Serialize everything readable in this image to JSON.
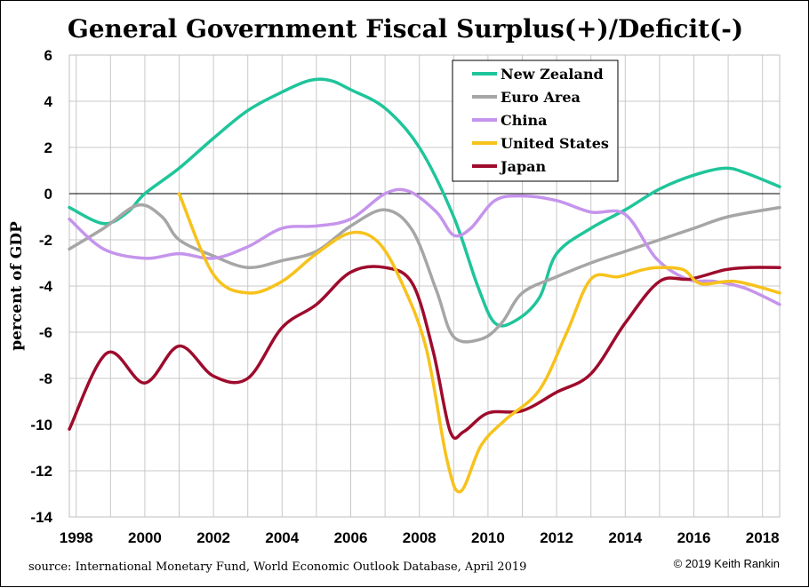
{
  "chart_data": {
    "type": "line",
    "title": "General Government Fiscal Surplus(+)/Deficit(-)",
    "ylabel": "percent of GDP",
    "xlabel": "",
    "xlim": [
      1997.8,
      2018.5
    ],
    "ylim": [
      -14,
      6
    ],
    "yticks": [
      6,
      4,
      2,
      0,
      -2,
      -4,
      -6,
      -8,
      -10,
      -12,
      -14
    ],
    "yticklabels": [
      "6",
      "4",
      "2",
      "0",
      "-2",
      "-4",
      "-6",
      "-8",
      "-10",
      "-12",
      "-14"
    ],
    "xticks": [
      1998,
      2000,
      2002,
      2004,
      2006,
      2008,
      2010,
      2012,
      2014,
      2016,
      2018
    ],
    "xticklabels": [
      "1998",
      "2000",
      "2002",
      "2004",
      "2006",
      "2008",
      "2010",
      "2012",
      "2014",
      "2016",
      "2018"
    ],
    "grid": true,
    "legend_position": "top-right",
    "zero_line": true,
    "series": [
      {
        "name": "New Zealand",
        "color": "#1fc59a",
        "x": [
          1997.8,
          1998.8,
          1999.5,
          2000.0,
          2001.0,
          2002.0,
          2003.0,
          2004.0,
          2004.8,
          2005.4,
          2006.0,
          2007.0,
          2008.0,
          2009.0,
          2009.7,
          2010.2,
          2010.8,
          2011.5,
          2012.0,
          2013.0,
          2014.0,
          2015.0,
          2016.0,
          2016.9,
          2017.5,
          2018.5
        ],
        "values": [
          -0.6,
          -1.3,
          -0.8,
          0.0,
          1.1,
          2.4,
          3.6,
          4.4,
          4.9,
          4.9,
          4.5,
          3.7,
          2.0,
          -1.0,
          -4.0,
          -5.6,
          -5.5,
          -4.5,
          -2.6,
          -1.5,
          -0.7,
          0.2,
          0.8,
          1.1,
          0.9,
          0.3
        ]
      },
      {
        "name": "Euro Area",
        "color": "#a6a6a6",
        "x": [
          1997.8,
          1998.8,
          1999.8,
          2000.5,
          2001.0,
          2002.0,
          2003.0,
          2004.0,
          2005.0,
          2006.0,
          2007.0,
          2007.8,
          2008.5,
          2009.0,
          2009.8,
          2010.4,
          2011.0,
          2012.0,
          2013.0,
          2014.0,
          2015.0,
          2016.0,
          2017.0,
          2018.5
        ],
        "values": [
          -2.4,
          -1.5,
          -0.5,
          -1.0,
          -2.0,
          -2.7,
          -3.2,
          -2.9,
          -2.5,
          -1.4,
          -0.7,
          -1.6,
          -4.2,
          -6.2,
          -6.3,
          -5.6,
          -4.3,
          -3.6,
          -3.0,
          -2.5,
          -2.0,
          -1.5,
          -1.0,
          -0.6
        ]
      },
      {
        "name": "China",
        "color": "#c594ec",
        "x": [
          1997.8,
          1998.8,
          2000.0,
          2001.0,
          2002.0,
          2003.0,
          2004.0,
          2005.0,
          2006.0,
          2007.0,
          2007.7,
          2008.5,
          2009.0,
          2009.5,
          2010.2,
          2011.0,
          2012.0,
          2013.0,
          2014.0,
          2014.9,
          2015.8,
          2016.6,
          2017.5,
          2018.5
        ],
        "values": [
          -1.1,
          -2.4,
          -2.8,
          -2.6,
          -2.8,
          -2.3,
          -1.5,
          -1.4,
          -1.1,
          0.0,
          0.1,
          -0.8,
          -1.8,
          -1.5,
          -0.3,
          -0.1,
          -0.3,
          -0.8,
          -0.9,
          -2.8,
          -3.7,
          -3.8,
          -4.1,
          -4.8
        ]
      },
      {
        "name": "United States",
        "color": "#f7c21c",
        "x": [
          2001.0,
          2002.0,
          2003.0,
          2004.0,
          2005.0,
          2006.0,
          2006.8,
          2007.5,
          2008.2,
          2008.8,
          2009.2,
          2009.8,
          2010.5,
          2011.5,
          2012.3,
          2013.0,
          2013.8,
          2014.5,
          2015.0,
          2015.7,
          2016.2,
          2017.2,
          2018.5
        ],
        "values": [
          0.0,
          -3.5,
          -4.3,
          -3.8,
          -2.6,
          -1.7,
          -2.1,
          -3.9,
          -6.7,
          -11.5,
          -12.9,
          -10.9,
          -9.8,
          -8.5,
          -6.0,
          -3.7,
          -3.6,
          -3.3,
          -3.2,
          -3.3,
          -3.9,
          -3.8,
          -4.3
        ]
      },
      {
        "name": "Japan",
        "color": "#9e0b2c",
        "x": [
          1997.8,
          1998.9,
          2000.0,
          2001.0,
          2002.0,
          2003.0,
          2004.0,
          2005.0,
          2006.0,
          2007.0,
          2007.8,
          2008.4,
          2008.9,
          2009.3,
          2010.0,
          2011.0,
          2012.0,
          2013.0,
          2014.0,
          2015.0,
          2015.9,
          2016.9,
          2017.6,
          2018.5
        ],
        "values": [
          -10.2,
          -6.9,
          -8.2,
          -6.6,
          -7.9,
          -8.0,
          -5.8,
          -4.8,
          -3.4,
          -3.2,
          -3.9,
          -6.8,
          -10.3,
          -10.3,
          -9.5,
          -9.4,
          -8.6,
          -7.8,
          -5.6,
          -3.8,
          -3.7,
          -3.3,
          -3.2,
          -3.2
        ]
      }
    ]
  },
  "footer": {
    "source": "source: International Monetary Fund, World Economic Outlook Database, April 2019",
    "copyright": "© 2019 Keith Rankin"
  }
}
